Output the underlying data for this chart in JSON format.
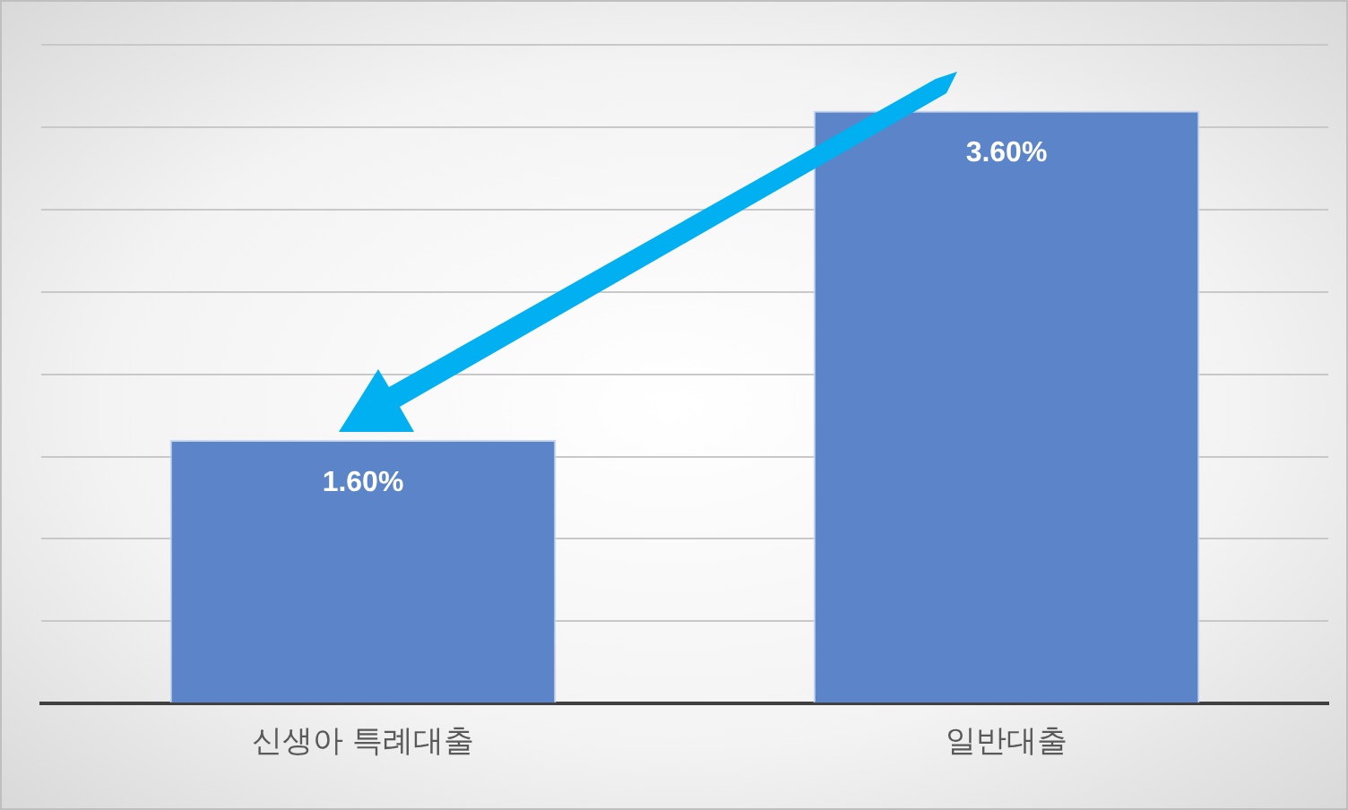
{
  "chart_data": {
    "type": "bar",
    "categories": [
      "신생아 특례대출",
      "일반대출"
    ],
    "values": [
      1.6,
      3.6
    ],
    "color": "#5b84c9",
    "value_labels": [
      "1.60%",
      "3.60%"
    ],
    "ylim": [
      0,
      4
    ],
    "yticks": [
      {
        "value": 0,
        "label": null
      },
      {
        "value": 0.5,
        "label": null
      },
      {
        "value": 1,
        "label": null
      },
      {
        "value": 1.5,
        "label": null
      },
      {
        "value": 2,
        "label": null
      },
      {
        "value": 2.5,
        "label": null
      },
      {
        "value": 3,
        "label": null
      },
      {
        "value": 3.5,
        "label": null
      },
      {
        "value": 4,
        "label": null
      }
    ],
    "grid": "y",
    "tick_labels": "x",
    "legend": false
  }
}
